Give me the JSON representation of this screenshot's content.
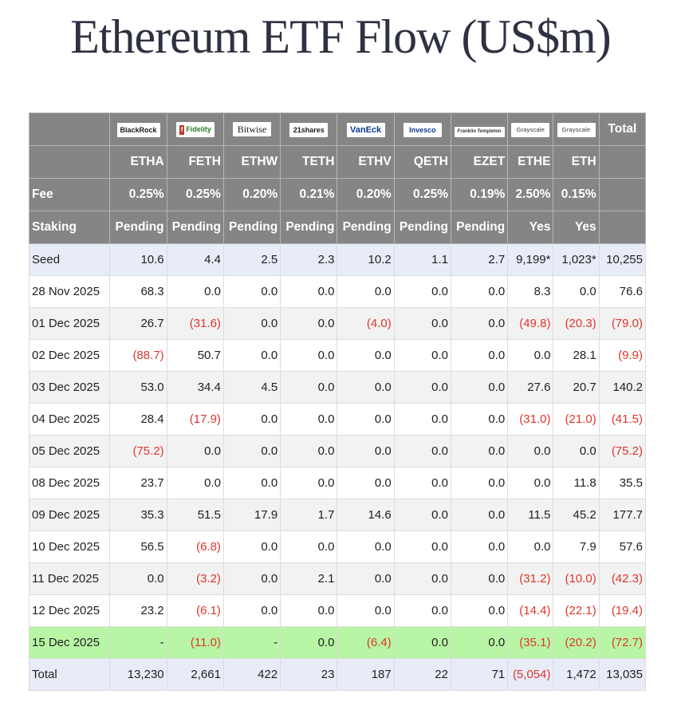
{
  "title": "Ethereum ETF Flow (US$m)",
  "issuers": [
    "BlackRock",
    "Fidelity",
    "Bitwise",
    "21shares",
    "VanEck",
    "Invesco",
    "Franklin Templeton",
    "Grayscale",
    "Grayscale"
  ],
  "total_header": "Total",
  "tickers": [
    "ETHA",
    "FETH",
    "ETHW",
    "TETH",
    "ETHV",
    "QETH",
    "EZET",
    "ETHE",
    "ETH"
  ],
  "fee_label": "Fee",
  "fees": [
    "0.25%",
    "0.25%",
    "0.20%",
    "0.21%",
    "0.20%",
    "0.25%",
    "0.19%",
    "2.50%",
    "0.15%"
  ],
  "staking_label": "Staking",
  "staking": [
    "Pending",
    "Pending",
    "Pending",
    "Pending",
    "Pending",
    "Pending",
    "Pending",
    "Yes",
    "Yes"
  ],
  "colors": {
    "negative": "#e0352b",
    "header_bg": "#858585",
    "seed_bg": "#e8ecf8",
    "highlight_bg": "#b8f5a5"
  },
  "chart_data": {
    "type": "table",
    "title": "Ethereum ETF Flow (US$m)",
    "columns": [
      "ETHA",
      "FETH",
      "ETHW",
      "TETH",
      "ETHV",
      "QETH",
      "EZET",
      "ETHE",
      "ETH",
      "Total"
    ],
    "rows": [
      {
        "label": "Seed",
        "values": [
          "10.6",
          "4.4",
          "2.5",
          "2.3",
          "10.2",
          "1.1",
          "2.7",
          "9,199*",
          "1,023*",
          "10,255"
        ],
        "style": "seed"
      },
      {
        "label": "28 Nov 2025",
        "values": [
          "68.3",
          "0.0",
          "0.0",
          "0.0",
          "0.0",
          "0.0",
          "0.0",
          "8.3",
          "0.0",
          "76.6"
        ],
        "style": "plain"
      },
      {
        "label": "01 Dec 2025",
        "values": [
          "26.7",
          "(31.6)",
          "0.0",
          "0.0",
          "(4.0)",
          "0.0",
          "0.0",
          "(49.8)",
          "(20.3)",
          "(79.0)"
        ],
        "style": "alt"
      },
      {
        "label": "02 Dec 2025",
        "values": [
          "(88.7)",
          "50.7",
          "0.0",
          "0.0",
          "0.0",
          "0.0",
          "0.0",
          "0.0",
          "28.1",
          "(9.9)"
        ],
        "style": "plain"
      },
      {
        "label": "03 Dec 2025",
        "values": [
          "53.0",
          "34.4",
          "4.5",
          "0.0",
          "0.0",
          "0.0",
          "0.0",
          "27.6",
          "20.7",
          "140.2"
        ],
        "style": "alt"
      },
      {
        "label": "04 Dec 2025",
        "values": [
          "28.4",
          "(17.9)",
          "0.0",
          "0.0",
          "0.0",
          "0.0",
          "0.0",
          "(31.0)",
          "(21.0)",
          "(41.5)"
        ],
        "style": "plain"
      },
      {
        "label": "05 Dec 2025",
        "values": [
          "(75.2)",
          "0.0",
          "0.0",
          "0.0",
          "0.0",
          "0.0",
          "0.0",
          "0.0",
          "0.0",
          "(75.2)"
        ],
        "style": "alt"
      },
      {
        "label": "08 Dec 2025",
        "values": [
          "23.7",
          "0.0",
          "0.0",
          "0.0",
          "0.0",
          "0.0",
          "0.0",
          "0.0",
          "11.8",
          "35.5"
        ],
        "style": "plain"
      },
      {
        "label": "09 Dec 2025",
        "values": [
          "35.3",
          "51.5",
          "17.9",
          "1.7",
          "14.6",
          "0.0",
          "0.0",
          "11.5",
          "45.2",
          "177.7"
        ],
        "style": "alt"
      },
      {
        "label": "10 Dec 2025",
        "values": [
          "56.5",
          "(6.8)",
          "0.0",
          "0.0",
          "0.0",
          "0.0",
          "0.0",
          "0.0",
          "7.9",
          "57.6"
        ],
        "style": "plain"
      },
      {
        "label": "11 Dec 2025",
        "values": [
          "0.0",
          "(3.2)",
          "0.0",
          "2.1",
          "0.0",
          "0.0",
          "0.0",
          "(31.2)",
          "(10.0)",
          "(42.3)"
        ],
        "style": "alt"
      },
      {
        "label": "12 Dec 2025",
        "values": [
          "23.2",
          "(6.1)",
          "0.0",
          "0.0",
          "0.0",
          "0.0",
          "0.0",
          "(14.4)",
          "(22.1)",
          "(19.4)"
        ],
        "style": "plain"
      },
      {
        "label": "15 Dec 2025",
        "values": [
          "-",
          "(11.0)",
          "-",
          "0.0",
          "(6.4)",
          "0.0",
          "0.0",
          "(35.1)",
          "(20.2)",
          "(72.7)"
        ],
        "style": "highlight"
      },
      {
        "label": "Total",
        "values": [
          "13,230",
          "2,661",
          "422",
          "23",
          "187",
          "22",
          "71",
          "(5,054)",
          "1,472",
          "13,035"
        ],
        "style": "total"
      }
    ]
  }
}
